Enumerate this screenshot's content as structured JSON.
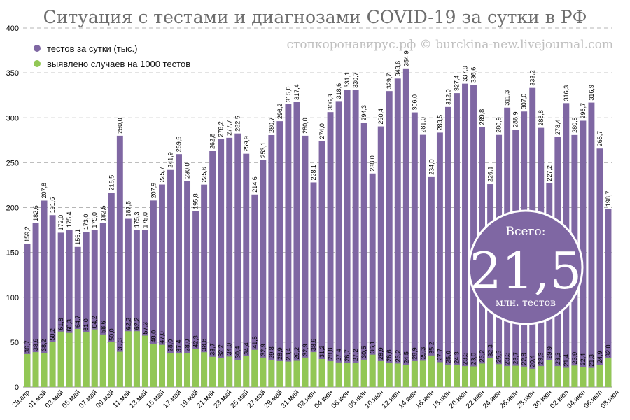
{
  "chart_data": {
    "type": "bar",
    "title": "Ситуация с тестами и диагнозами COVID-19 за сутки в РФ",
    "watermark": "стопкоронавирус.рф © burckina-new.livejournal.com",
    "ylim": [
      0,
      400
    ],
    "yticks": [
      0,
      50,
      100,
      150,
      200,
      250,
      300,
      350,
      400
    ],
    "grid": true,
    "legend_position": "top-left",
    "x_tick_labels": [
      "29.апр",
      "01.май",
      "03.май",
      "05.май",
      "07.май",
      "09.май",
      "11.май",
      "13.май",
      "15.май",
      "17.май",
      "19.май",
      "21.май",
      "23.май",
      "25.май",
      "27.май",
      "29.май",
      "31.май",
      "02.июн",
      "04.июн",
      "06.июн",
      "08.июн",
      "10.июн",
      "12.июн",
      "14.июн",
      "16.июн",
      "18.июн",
      "20.июн",
      "22.июн",
      "24.июн",
      "26.июн",
      "28.июн",
      "30.июн",
      "02.июл",
      "04.июл",
      "06.июл",
      "08.июл"
    ],
    "series": [
      {
        "name": "тестов за сутки (тыс.)",
        "color": "#7f67a3",
        "values": [
          159.2,
          182.6,
          207.8,
          191.6,
          172.0,
          175.4,
          156.1,
          173.0,
          175.0,
          182.5,
          216.5,
          280.0,
          187.5,
          175.3,
          175.0,
          207.9,
          225.7,
          241.9,
          259.5,
          230.0,
          195.8,
          225.6,
          262.8,
          276.2,
          277.7,
          282.5,
          259.9,
          214.6,
          253.1,
          280.7,
          296.2,
          315.0,
          317.4,
          280.0,
          228.1,
          274.0,
          306.3,
          318.6,
          331.1,
          330.7,
          294.3,
          238.0,
          290.4,
          329.7,
          343.6,
          354.9,
          306.0,
          281.0,
          234.0,
          283.5,
          312.0,
          327.4,
          337.9,
          336.6,
          289.8,
          226.1,
          280.9,
          311.3,
          286.9,
          307.0,
          333.2,
          288.8,
          227.2,
          278.4,
          316.3,
          280.8,
          296.7,
          316.9,
          265.7,
          198.7
        ],
        "labels": [
          "159,2",
          "182,6",
          "207,8",
          "191,6",
          "172,0",
          "175,4",
          "156,1",
          "173,0",
          "175,0",
          "182,5",
          "216,5",
          "280,0",
          "187,5",
          "175,3",
          "175,0",
          "207,9",
          "225,7",
          "241,9",
          "259,5",
          "230,0",
          "195,8",
          "225,6",
          "262,8",
          "276,2",
          "277,7",
          "282,5",
          "259,9",
          "214,6",
          "253,1",
          "280,7",
          "296,2",
          "315,0",
          "317,4",
          "280,0",
          "228,1",
          "274,0",
          "306,3",
          "318,6",
          "331,1",
          "330,7",
          "294,3",
          "238,0",
          "290,4",
          "329,7",
          "343,6",
          "354,9",
          "306,0",
          "281,0",
          "234,0",
          "283,5",
          "312,0",
          "327,4",
          "337,9",
          "336,6",
          "289,8",
          "226,1",
          "280,9",
          "311,3",
          "286,9",
          "307,0",
          "333,2",
          "288,8",
          "227,2",
          "278,4",
          "316,3",
          "280,8",
          "296,7",
          "316,9",
          "265,7",
          "198,7"
        ]
      },
      {
        "name": "выявлено случаев на 1000 тестов",
        "color": "#92c755",
        "values": [
          36.7,
          38.9,
          38.2,
          50.2,
          61.8,
          60.3,
          64.7,
          61.0,
          64.2,
          58.6,
          50.0,
          39.3,
          62.2,
          62.2,
          57.3,
          48.0,
          47.0,
          38.0,
          37.4,
          38.0,
          42.3,
          38.8,
          33.7,
          32.2,
          34.0,
          30.4,
          34.4,
          41.5,
          32.9,
          29.8,
          28.9,
          28.4,
          29.2,
          32.9,
          38.9,
          31.2,
          28.8,
          27.4,
          26.7,
          27.2,
          30.5,
          36.1,
          28.9,
          26.6,
          26.2,
          24.5,
          28.9,
          29.3,
          35.2,
          27.7,
          25.0,
          24.3,
          23.3,
          23.0,
          26.2,
          32.3,
          25.5,
          23.3,
          23.7,
          22.8,
          20.4,
          23.3,
          29.9,
          23.3,
          21.4,
          23.9,
          22.4,
          21.3,
          24.9,
          32.0
        ],
        "labels": [
          "36,7",
          "38,9",
          "38,2",
          "50,2",
          "61,8",
          "60,3",
          "64,7",
          "61,0",
          "64,2",
          "58,6",
          "50,0",
          "39,3",
          "62,2",
          "62,2",
          "57,3",
          "48,0",
          "47,0",
          "38,0",
          "37,4",
          "38,0",
          "42,3",
          "38,8",
          "33,7",
          "32,2",
          "34,0",
          "30,4",
          "34,4",
          "41,5",
          "32,9",
          "29,8",
          "28,9",
          "28,4",
          "29,2",
          "32,9",
          "38,9",
          "31,2",
          "28,8",
          "27,4",
          "26,7",
          "27,2",
          "30,5",
          "36,1",
          "28,9",
          "26,6",
          "26,2",
          "24,5",
          "28,9",
          "29,3",
          "35,2",
          "27,7",
          "25,0",
          "24,3",
          "23,3",
          "23,0",
          "26,2",
          "32,3",
          "25,5",
          "23,3",
          "23,7",
          "22,8",
          "20,4",
          "23,3",
          "29,9",
          "23,3",
          "21,4",
          "23,9",
          "22,4",
          "21,3",
          "24,9",
          "32,0"
        ]
      }
    ],
    "total_badge": {
      "top": "Всего:",
      "value": "21,5",
      "bottom": "млн. тестов",
      "color": "#7f67a3"
    }
  }
}
